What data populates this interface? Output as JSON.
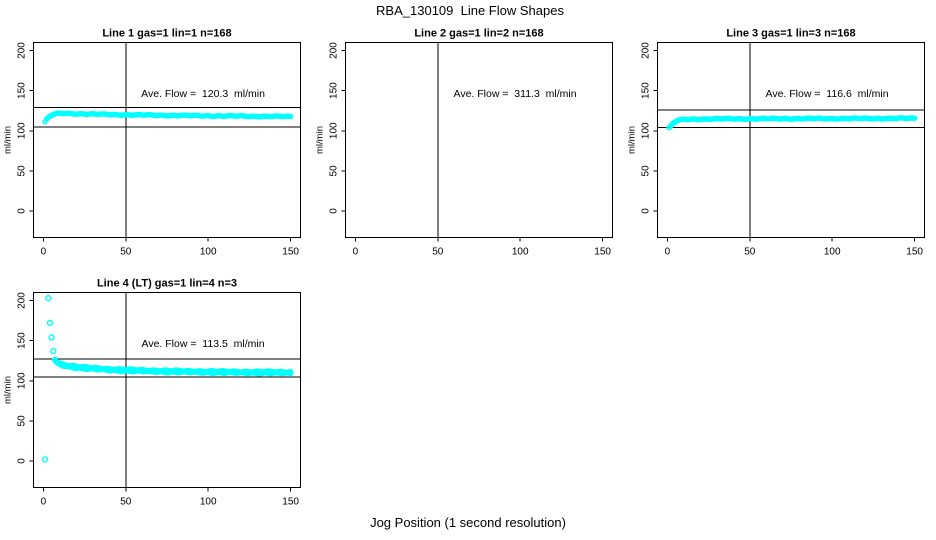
{
  "figure_title": "RBA_130109  Line Flow Shapes",
  "x_axis_label": "Jog Position (1 second resolution)",
  "colors": {
    "marker": "#00ffff",
    "axis": "#000000",
    "background": "#ffffff",
    "text": "#000000"
  },
  "chart_data": [
    {
      "type": "scatter",
      "title": "Line 1 gas=1 lin=1 n=168",
      "annotation": "Ave. Flow =  120.3  ml/min",
      "ave_flow": 120.3,
      "n": 168,
      "ylabel": "ml/min",
      "x_ticks": [
        0,
        50,
        100,
        150
      ],
      "y_ticks": [
        0,
        50,
        100,
        150,
        200
      ],
      "xlim": [
        -6,
        156
      ],
      "ylim": [
        -33,
        210
      ],
      "vline_x": 50,
      "hlines": [
        129,
        105
      ],
      "marker_style": "open-circle",
      "series": [
        {
          "name": "flow",
          "runs": 1,
          "wobble": 0.35,
          "anchors": [
            [
              1,
              111
            ],
            [
              2,
              114
            ],
            [
              3,
              116.5
            ],
            [
              4,
              118
            ],
            [
              5,
              119.2
            ],
            [
              6,
              120.2
            ],
            [
              8,
              121.2
            ],
            [
              10,
              121.6
            ],
            [
              14,
              121.7
            ],
            [
              20,
              121.3
            ],
            [
              30,
              120.7
            ],
            [
              45,
              120.1
            ],
            [
              60,
              119.6
            ],
            [
              80,
              119.1
            ],
            [
              100,
              118.6
            ],
            [
              120,
              118.2
            ],
            [
              150,
              117.7
            ]
          ]
        }
      ],
      "outliers": []
    },
    {
      "type": "scatter",
      "title": "Line 2 gas=1 lin=2 n=168",
      "annotation": "Ave. Flow =  311.3  ml/min",
      "ave_flow": 311.3,
      "n": 168,
      "ylabel": "ml/min",
      "x_ticks": [
        0,
        50,
        100,
        150
      ],
      "y_ticks": [
        0,
        50,
        100,
        150,
        200
      ],
      "xlim": [
        -6,
        156
      ],
      "ylim": [
        -33,
        210
      ],
      "vline_x": 50,
      "hlines": [],
      "marker_style": "open-circle",
      "series": [],
      "outliers": []
    },
    {
      "type": "scatter",
      "title": "Line 3 gas=1 lin=3 n=168",
      "annotation": "Ave. Flow =  116.6  ml/min",
      "ave_flow": 116.6,
      "n": 168,
      "ylabel": "ml/min",
      "x_ticks": [
        0,
        50,
        100,
        150
      ],
      "y_ticks": [
        0,
        50,
        100,
        150,
        200
      ],
      "xlim": [
        -6,
        156
      ],
      "ylim": [
        -33,
        210
      ],
      "vline_x": 50,
      "hlines": [
        126,
        104
      ],
      "marker_style": "open-circle",
      "series": [
        {
          "name": "flow",
          "runs": 1,
          "wobble": 0.35,
          "anchors": [
            [
              1,
              103.5
            ],
            [
              2,
              105.5
            ],
            [
              3,
              108
            ],
            [
              4,
              110
            ],
            [
              5,
              111.5
            ],
            [
              6,
              112.5
            ],
            [
              8,
              113.5
            ],
            [
              10,
              114
            ],
            [
              15,
              114.4
            ],
            [
              25,
              114.7
            ],
            [
              40,
              114.9
            ],
            [
              60,
              115
            ],
            [
              80,
              115.1
            ],
            [
              100,
              115.2
            ],
            [
              120,
              115.3
            ],
            [
              150,
              115.5
            ]
          ]
        }
      ],
      "outliers": []
    },
    {
      "type": "scatter",
      "title": "Line 4 (LT) gas=1 lin=4 n=3",
      "annotation": "Ave. Flow =  113.5  ml/min",
      "ave_flow": 113.5,
      "n": 3,
      "ylabel": "ml/min",
      "x_ticks": [
        0,
        50,
        100,
        150
      ],
      "y_ticks": [
        0,
        50,
        100,
        150,
        200
      ],
      "xlim": [
        -6,
        156
      ],
      "ylim": [
        -33,
        210
      ],
      "vline_x": 50,
      "hlines": [
        127,
        105
      ],
      "marker_style": "open-circle",
      "series": [
        {
          "name": "flow",
          "runs": 3,
          "wobble": 0.6,
          "anchors": [
            [
              7,
              126
            ],
            [
              8,
              123.5
            ],
            [
              9,
              122
            ],
            [
              10,
              121
            ],
            [
              12,
              119.8
            ],
            [
              15,
              118.4
            ],
            [
              20,
              117
            ],
            [
              25,
              116
            ],
            [
              30,
              115.2
            ],
            [
              40,
              114
            ],
            [
              50,
              113.1
            ],
            [
              60,
              112.5
            ],
            [
              70,
              112
            ],
            [
              80,
              111.6
            ],
            [
              90,
              111.3
            ],
            [
              100,
              111
            ],
            [
              110,
              110.8
            ],
            [
              120,
              110.6
            ],
            [
              135,
              110.4
            ],
            [
              150,
              110.2
            ]
          ]
        }
      ],
      "outliers": [
        [
          1,
          2
        ],
        [
          3,
          203
        ],
        [
          4,
          172
        ],
        [
          5,
          154
        ],
        [
          6,
          137
        ]
      ]
    }
  ]
}
